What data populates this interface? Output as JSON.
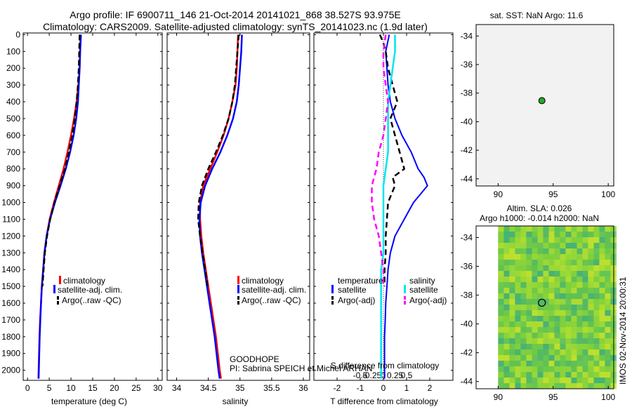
{
  "title": {
    "line1": "Argo profile: IF 6900711_146 21-Oct-2014 20141021_868 38.527S 93.975E",
    "line2": "Climatology: CARS2009. Satellite-adjusted climatology: synTS_20141023.nc (1.9d later)"
  },
  "colors": {
    "climatology": "#ff0000",
    "satellite": "#0000ff",
    "argo": "#000000",
    "sat_salinity": "#00e5ee",
    "argo_salinity": "#ff00ff",
    "map_bg": "#f2f2f2",
    "sla_bg": "#7fd040"
  },
  "depth_axis": {
    "ticks": [
      "0",
      "100",
      "200",
      "300",
      "400",
      "500",
      "600",
      "700",
      "800",
      "900",
      "1000",
      "1100",
      "1200",
      "1300",
      "1400",
      "1500",
      "1600",
      "1700",
      "1800",
      "1900",
      "2000"
    ]
  },
  "legend": {
    "climatology": "climatology",
    "satellite": "satellite-adj. clim.",
    "argo": "Argo(..raw -QC)"
  },
  "diff_legend": {
    "temperature_header": "temperature",
    "salinity_header": "salinity",
    "satellite": "satellite",
    "argo_adj": "Argo(-adj)"
  },
  "credits": {
    "project": "GOODHOPE",
    "pi": "PI: Sabrina SPEICH et Michel ARHAN"
  },
  "sst_map": {
    "title": "sat. SST: NaN Argo: 11.6",
    "x_ticks": [
      "90",
      "95",
      "100"
    ],
    "y_ticks": [
      "-34",
      "-36",
      "-38",
      "-40",
      "-42",
      "-44"
    ],
    "float_lon": 93.975,
    "float_lat": -38.527
  },
  "sla_map": {
    "title1": "Altim. SLA: 0.026",
    "title2": "Argo h1000: -0.014 h2000: NaN",
    "x_ticks": [
      "90",
      "95",
      "100"
    ],
    "y_ticks": [
      "-34",
      "-36",
      "-38",
      "-40",
      "-42",
      "-44"
    ],
    "float_lon": 93.975,
    "float_lat": -38.527
  },
  "timestamp": "IMOS 02-Nov-2014 20:00:31",
  "chart_data": [
    {
      "type": "line",
      "title": "",
      "xlabel": "temperature (deg C)",
      "ylabel": "",
      "xlim": [
        -1,
        31
      ],
      "ylim": [
        2060,
        -10
      ],
      "x_ticks": [
        "0",
        "5",
        "10",
        "15",
        "20",
        "25",
        "30"
      ],
      "series": [
        {
          "name": "climatology",
          "depths": [
            0,
            100,
            200,
            300,
            400,
            500,
            600,
            700,
            800,
            900,
            1000,
            1100,
            1200,
            1300,
            1400,
            1500,
            1600,
            1700,
            1800,
            1900,
            2000,
            2050
          ],
          "values": [
            12.2,
            12.1,
            12.0,
            11.7,
            11.3,
            10.7,
            10.0,
            9.2,
            8.3,
            7.2,
            6.1,
            5.1,
            4.4,
            3.9,
            3.6,
            3.3,
            3.1,
            2.9,
            2.75,
            2.65,
            2.55,
            2.5
          ]
        },
        {
          "name": "satellite-adj. clim.",
          "depths": [
            0,
            100,
            200,
            300,
            400,
            500,
            600,
            700,
            800,
            900,
            1000,
            1100,
            1200,
            1300,
            1400,
            1500,
            1600,
            1700,
            1800,
            1900,
            2000,
            2050
          ],
          "values": [
            12.3,
            12.1,
            12.0,
            11.8,
            11.6,
            11.2,
            10.6,
            9.8,
            8.8,
            7.6,
            6.3,
            5.2,
            4.4,
            3.9,
            3.6,
            3.3,
            3.1,
            2.95,
            2.8,
            2.7,
            2.6,
            2.55
          ]
        },
        {
          "name": "Argo(..raw -QC)",
          "depths": [
            0,
            100,
            200,
            300,
            400,
            500,
            600,
            700,
            800,
            900,
            1000,
            1100,
            1200,
            1300,
            1400,
            1500
          ],
          "values": [
            12.0,
            11.9,
            11.8,
            11.6,
            11.3,
            10.9,
            10.3,
            9.5,
            8.6,
            7.4,
            6.2,
            5.2,
            4.5,
            4.0,
            3.7,
            3.45
          ]
        }
      ]
    },
    {
      "type": "line",
      "title": "",
      "xlabel": "salinity",
      "ylabel": "",
      "xlim": [
        33.85,
        36.1
      ],
      "ylim": [
        2060,
        -10
      ],
      "x_ticks": [
        "34",
        "34.5",
        "35",
        "35.5",
        "36"
      ],
      "series": [
        {
          "name": "climatology",
          "depths": [
            0,
            100,
            200,
            300,
            400,
            500,
            600,
            700,
            800,
            900,
            1000,
            1100,
            1200,
            1300,
            1400,
            1500,
            1600,
            1700,
            1800,
            1900,
            2000,
            2050
          ],
          "values": [
            34.97,
            34.96,
            34.95,
            34.93,
            34.88,
            34.82,
            34.74,
            34.64,
            34.53,
            34.42,
            34.37,
            34.37,
            34.39,
            34.42,
            34.46,
            34.5,
            34.54,
            34.58,
            34.62,
            34.65,
            34.68,
            34.7
          ]
        },
        {
          "name": "satellite-adj. clim.",
          "depths": [
            0,
            100,
            200,
            300,
            400,
            500,
            600,
            700,
            800,
            900,
            1000,
            1100,
            1200,
            1300,
            1400,
            1500,
            1600,
            1700,
            1800,
            1900,
            2000,
            2050
          ],
          "values": [
            35.03,
            35.02,
            35.0,
            34.98,
            34.95,
            34.89,
            34.8,
            34.69,
            34.56,
            34.45,
            34.38,
            34.36,
            34.37,
            34.4,
            34.44,
            34.48,
            34.52,
            34.56,
            34.6,
            34.63,
            34.66,
            34.68
          ]
        },
        {
          "name": "Argo(..raw -QC)",
          "depths": [
            0,
            100,
            200,
            300,
            400,
            500,
            600,
            700,
            800,
            900,
            1000,
            1100,
            1200,
            1300,
            1400,
            1500
          ],
          "values": [
            34.98,
            34.96,
            34.94,
            34.92,
            34.88,
            34.82,
            34.73,
            34.62,
            34.5,
            34.4,
            34.35,
            34.34,
            34.37,
            34.41,
            34.45,
            34.49
          ]
        }
      ]
    },
    {
      "type": "line",
      "title": "",
      "xlabel": "T difference from climatology",
      "secondary_xlabel": "S difference from climatology",
      "ylabel": "",
      "xlim": [
        -3,
        3
      ],
      "ylim": [
        2060,
        -10
      ],
      "x_ticks": [
        "-2",
        "-1",
        "0",
        "1",
        "2"
      ],
      "secondary_x_ticks": [
        "-0.5",
        "-0.25",
        "0",
        "0.25",
        "0.5"
      ],
      "series": [
        {
          "name": "temperature satellite",
          "depths": [
            0,
            100,
            200,
            300,
            400,
            500,
            600,
            700,
            800,
            850,
            900,
            950,
            1000,
            1100,
            1200,
            1300,
            1400,
            1500,
            1600,
            1700,
            1800,
            1900,
            2000,
            2050
          ],
          "values": [
            0.25,
            0.1,
            0.15,
            0.2,
            0.3,
            0.5,
            0.8,
            1.2,
            1.5,
            1.75,
            1.9,
            1.6,
            1.3,
            0.9,
            0.5,
            0.3,
            0.2,
            0.15,
            0.1,
            0.08,
            0.05,
            0.05,
            0.05,
            0.05
          ]
        },
        {
          "name": "temperature Argo(-adj)",
          "depths": [
            0,
            50,
            100,
            200,
            300,
            400,
            500,
            600,
            700,
            800,
            850,
            900,
            1000,
            1100,
            1200,
            1300,
            1400,
            1500
          ],
          "values": [
            -0.15,
            0.0,
            0.1,
            0.2,
            0.4,
            0.6,
            0.3,
            0.5,
            0.7,
            0.9,
            0.4,
            0.5,
            0.2,
            0.15,
            0.1,
            0.1,
            0.05,
            0.05
          ]
        },
        {
          "name": "salinity satellite",
          "depths": [
            0,
            100,
            200,
            300,
            400,
            500,
            600,
            700,
            800,
            900,
            1000,
            1100,
            1200,
            1300,
            1400,
            1500,
            1600,
            1700,
            1800,
            1900,
            2000,
            2050
          ],
          "values": [
            0.25,
            0.25,
            0.2,
            0.15,
            0.1,
            0.1,
            0.1,
            0.1,
            0.05,
            0.0,
            0.0,
            0.0,
            0.0,
            0.0,
            -0.05,
            -0.05,
            -0.05,
            -0.05,
            -0.05,
            -0.05,
            -0.05,
            -0.05
          ]
        },
        {
          "name": "salinity Argo(-adj)",
          "depths": [
            0,
            100,
            200,
            300,
            400,
            500,
            600,
            700,
            800,
            900,
            1000,
            1100,
            1200,
            1300,
            1400,
            1500
          ],
          "values": [
            0.05,
            0.0,
            0.0,
            0.05,
            0.1,
            0.05,
            0.0,
            -0.1,
            -0.15,
            -0.25,
            -0.25,
            -0.2,
            -0.1,
            -0.05,
            0.0,
            0.0
          ]
        }
      ]
    }
  ]
}
